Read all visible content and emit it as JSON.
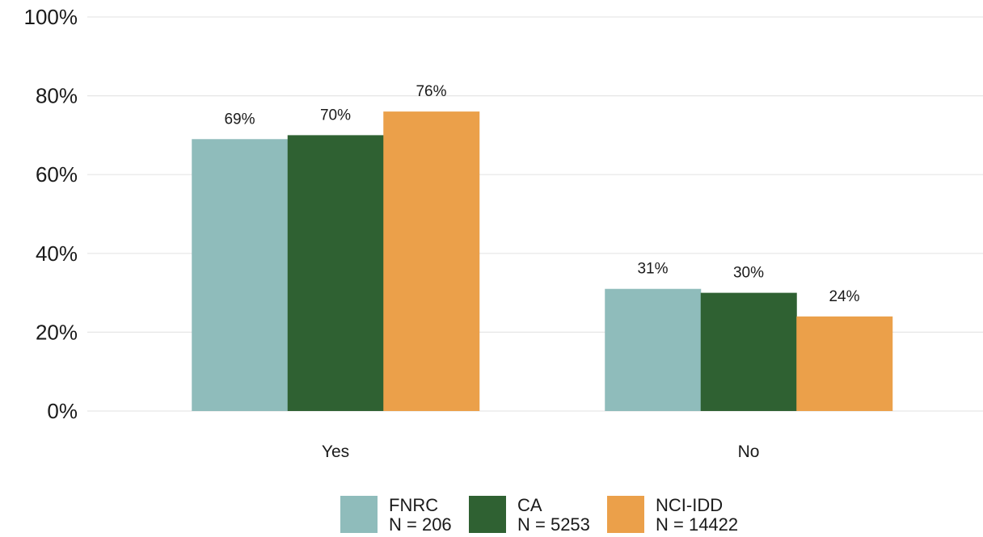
{
  "chart_data": {
    "type": "bar",
    "title": "",
    "xlabel": "",
    "ylabel": "",
    "categories": [
      "Yes",
      "No"
    ],
    "series": [
      {
        "name": "FNRC",
        "n_label": "N = 206",
        "color": "#8fbcbb",
        "values": [
          69,
          31
        ],
        "labels": [
          "69%",
          "31%"
        ]
      },
      {
        "name": "CA",
        "n_label": "N = 5253",
        "color": "#2f6132",
        "values": [
          70,
          30
        ],
        "labels": [
          "70%",
          "30%"
        ]
      },
      {
        "name": "NCI-IDD",
        "n_label": "N = 14422",
        "color": "#eba04a",
        "values": [
          76,
          24
        ],
        "labels": [
          "76%",
          "24%"
        ]
      }
    ],
    "ylim": [
      0,
      100
    ],
    "yticks": [
      0,
      20,
      40,
      60,
      80,
      100
    ],
    "ytick_labels": [
      "0%",
      "20%",
      "40%",
      "60%",
      "80%",
      "100%"
    ],
    "grid": true,
    "gridline_color": "#e6e6e6",
    "legend_position": "bottom"
  }
}
